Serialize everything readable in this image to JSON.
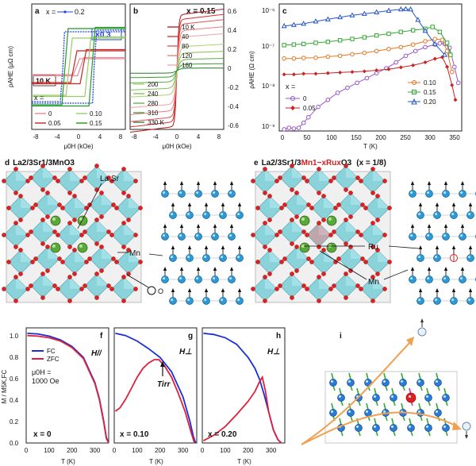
{
  "panels": {
    "a": {
      "label": "a",
      "x_eq": "x =",
      "x_value": "0.2",
      "scale_note": "×0.3",
      "temp_box": "10 K",
      "legend_x": "x =",
      "legend": [
        "0",
        "0.10",
        "0.05",
        "0.15"
      ],
      "ylabel": "ρAHE (μΩ cm)",
      "xlabel": "μ0H (kOe)",
      "xticks": [
        "-8",
        "-4",
        "0",
        "4",
        "8"
      ]
    },
    "b": {
      "label": "b",
      "title": "x = 0.15",
      "temps_top": [
        "10 K",
        "40",
        "80",
        "120",
        "160"
      ],
      "temps_bottom": [
        "200",
        "240",
        "280",
        "310",
        "330 K"
      ],
      "yticks_right": [
        "0.6",
        "0.4",
        "0.2",
        "0",
        "-0.2",
        "-0.4",
        "-0.6"
      ],
      "xlabel": "μ0H (kOe)",
      "xticks": [
        "-8",
        "-4",
        "0",
        "4",
        "8"
      ]
    },
    "c": {
      "label": "c",
      "ylabel": "ρAHE (Ω cm)",
      "xlabel": "T (K)",
      "yticks": [
        "10⁻⁶",
        "10⁻⁷",
        "10⁻⁸",
        "10⁻⁹"
      ],
      "xticks": [
        "0",
        "50",
        "100",
        "150",
        "200",
        "250",
        "300",
        "350"
      ],
      "legend_x": "x =",
      "legend": [
        "0",
        "0.05",
        "0.10",
        "0.15",
        "0.20"
      ]
    },
    "d": {
      "label": "d",
      "title": "La2/3Sr1/3MnO3",
      "ann": [
        "La,Sr",
        "Mn",
        "O"
      ]
    },
    "e": {
      "label": "e",
      "title_a": "La2/3Sr1/3",
      "title_b": "Mn1−xRux",
      "title_c": "O3",
      "title_x": "(x = 1/8)",
      "ann": [
        "Ru",
        "Mn"
      ]
    },
    "f": {
      "label": "f",
      "field": "H//",
      "legend": [
        "FC",
        "ZFC"
      ],
      "field_note_a": "μ0H =",
      "field_note_b": "1000 Oe",
      "x_note": "x = 0"
    },
    "g": {
      "label": "g",
      "field": "H⊥",
      "tirr": "Tirr",
      "x_note": "x = 0.10"
    },
    "h": {
      "label": "h",
      "field": "H⊥",
      "x_note": "x = 0.20"
    },
    "i": {
      "label": "i"
    },
    "mag_ylabel": "M / M5K,FC",
    "mag_xlabel": "T (K)",
    "mag_xticks": [
      "0",
      "100",
      "200",
      "300"
    ],
    "mag_yticks": [
      "1.0",
      "0.8",
      "0.6",
      "0.4",
      "0.2",
      "0.0"
    ]
  },
  "chart_data": [
    {
      "type": "line",
      "panel": "c",
      "title": "",
      "xlabel": "T (K)",
      "ylabel": "ρAHE (Ω cm)",
      "ylim": [
        1e-09,
        1.5e-06
      ],
      "xlim": [
        0,
        375
      ],
      "yscale": "log",
      "series": [
        {
          "name": "0",
          "color": "#9955cc",
          "marker": "circle",
          "x": [
            10,
            20,
            30,
            40,
            50,
            60,
            80,
            100,
            120,
            140,
            160,
            180,
            200,
            220,
            240,
            260,
            280,
            300,
            320,
            330,
            340,
            350,
            360,
            368
          ],
          "y": [
            1.1e-09,
            1.2e-09,
            1.15e-09,
            1.2e-09,
            1.6e-09,
            2.2e-09,
            4e-09,
            6e-09,
            9e-09,
            1.2e-08,
            1.6e-08,
            2.1e-08,
            2.8e-08,
            3.7e-08,
            5.2e-08,
            7.6e-08,
            1e-07,
            1.25e-07,
            1.45e-07,
            1.55e-07,
            1.5e-07,
            1.2e-07,
            4e-08,
            1.6e-08
          ]
        },
        {
          "name": "0.05",
          "color": "#cc2222",
          "marker": "diamond",
          "x": [
            10,
            30,
            50,
            75,
            100,
            125,
            150,
            175,
            200,
            225,
            250,
            275,
            300,
            320,
            335,
            345,
            355,
            362
          ],
          "y": [
            2.6e-08,
            2.6e-08,
            2.7e-08,
            2.7e-08,
            2.8e-08,
            2.9e-08,
            3e-08,
            3.1e-08,
            3.3e-08,
            3.5e-08,
            3.9e-08,
            4.4e-08,
            5.2e-08,
            6.4e-08,
            7e-08,
            4e-08,
            1.4e-08,
            6e-09
          ]
        },
        {
          "name": "0.10",
          "color": "#e07722",
          "marker": "circle",
          "x": [
            10,
            30,
            50,
            75,
            100,
            125,
            150,
            175,
            200,
            225,
            250,
            275,
            300,
            320,
            335,
            345,
            355
          ],
          "y": [
            6.5e-08,
            6.5e-08,
            6.7e-08,
            6.8e-08,
            7.2e-08,
            7.6e-08,
            8.3e-08,
            9e-08,
            1e-07,
            1.12e-07,
            1.25e-07,
            1.45e-07,
            1.75e-07,
            2e-07,
            1.9e-07,
            1e-07,
            3e-08
          ]
        },
        {
          "name": "0.15",
          "color": "#33aa33",
          "marker": "square",
          "x": [
            10,
            30,
            50,
            75,
            100,
            125,
            150,
            175,
            200,
            225,
            250,
            275,
            300,
            315,
            330,
            345,
            352
          ],
          "y": [
            1.4e-07,
            1.45e-07,
            1.5e-07,
            1.6e-07,
            1.7e-07,
            1.85e-07,
            2e-07,
            2.2e-07,
            2.45e-07,
            2.7e-07,
            3e-07,
            3.3e-07,
            3.6e-07,
            4e-07,
            3e-07,
            1.6e-07,
            8e-08
          ]
        },
        {
          "name": "0.20",
          "color": "#2255cc",
          "marker": "triangle",
          "x": [
            10,
            30,
            50,
            75,
            100,
            125,
            150,
            175,
            200,
            225,
            250,
            260,
            270,
            285,
            300,
            320,
            340
          ],
          "y": [
            4.2e-07,
            4.5e-07,
            4.8e-07,
            5.5e-07,
            6.2e-07,
            7e-07,
            7.8e-07,
            8.5e-07,
            9.3e-07,
            1.02e-06,
            1.1e-06,
            1.12e-06,
            1.1e-06,
            6e-07,
            3.2e-07,
            1.5e-07,
            8e-08
          ]
        }
      ]
    },
    {
      "type": "line",
      "panel": "f",
      "xlabel": "T (K)",
      "ylabel": "M / M5K,FC",
      "xlim": [
        0,
        360
      ],
      "ylim": [
        0,
        1.05
      ],
      "series": [
        {
          "name": "FC",
          "color": "#1a2fd6",
          "x": [
            5,
            50,
            100,
            150,
            200,
            250,
            300,
            320,
            340,
            350,
            360
          ],
          "y": [
            1.0,
            0.995,
            0.975,
            0.94,
            0.88,
            0.78,
            0.55,
            0.4,
            0.18,
            0.05,
            0
          ]
        },
        {
          "name": "ZFC",
          "color": "#e0203a",
          "x": [
            5,
            50,
            100,
            150,
            200,
            250,
            300,
            320,
            340,
            350,
            360
          ],
          "y": [
            0.98,
            0.975,
            0.96,
            0.93,
            0.87,
            0.77,
            0.54,
            0.39,
            0.17,
            0.04,
            0
          ]
        }
      ]
    },
    {
      "type": "line",
      "panel": "g",
      "xlabel": "T (K)",
      "xlim": [
        0,
        360
      ],
      "ylim": [
        0,
        1.05
      ],
      "series": [
        {
          "name": "FC",
          "color": "#1a2fd6",
          "x": [
            5,
            50,
            100,
            150,
            200,
            250,
            300,
            330,
            345,
            355
          ],
          "y": [
            1.0,
            0.98,
            0.93,
            0.86,
            0.78,
            0.65,
            0.42,
            0.2,
            0.06,
            0
          ]
        },
        {
          "name": "ZFC",
          "color": "#e0203a",
          "x": [
            5,
            25,
            50,
            75,
            100,
            125,
            150,
            175,
            195,
            220,
            250,
            280,
            310,
            335,
            350
          ],
          "y": [
            0.29,
            0.32,
            0.4,
            0.5,
            0.6,
            0.68,
            0.73,
            0.76,
            0.76,
            0.7,
            0.6,
            0.45,
            0.28,
            0.1,
            0
          ]
        }
      ]
    },
    {
      "type": "line",
      "panel": "h",
      "xlabel": "T (K)",
      "xlim": [
        0,
        360
      ],
      "ylim": [
        0,
        1.05
      ],
      "series": [
        {
          "name": "FC",
          "color": "#1a2fd6",
          "x": [
            5,
            50,
            100,
            150,
            200,
            230,
            250,
            270,
            290,
            310,
            330,
            345
          ],
          "y": [
            1.0,
            0.99,
            0.96,
            0.9,
            0.78,
            0.68,
            0.58,
            0.44,
            0.28,
            0.12,
            0.03,
            0
          ]
        },
        {
          "name": "ZFC",
          "color": "#e0203a",
          "x": [
            5,
            50,
            100,
            150,
            200,
            230,
            250,
            262,
            275,
            290,
            310,
            330,
            345
          ],
          "y": [
            0.02,
            0.07,
            0.15,
            0.26,
            0.38,
            0.47,
            0.56,
            0.6,
            0.48,
            0.28,
            0.12,
            0.03,
            0
          ]
        }
      ]
    }
  ]
}
